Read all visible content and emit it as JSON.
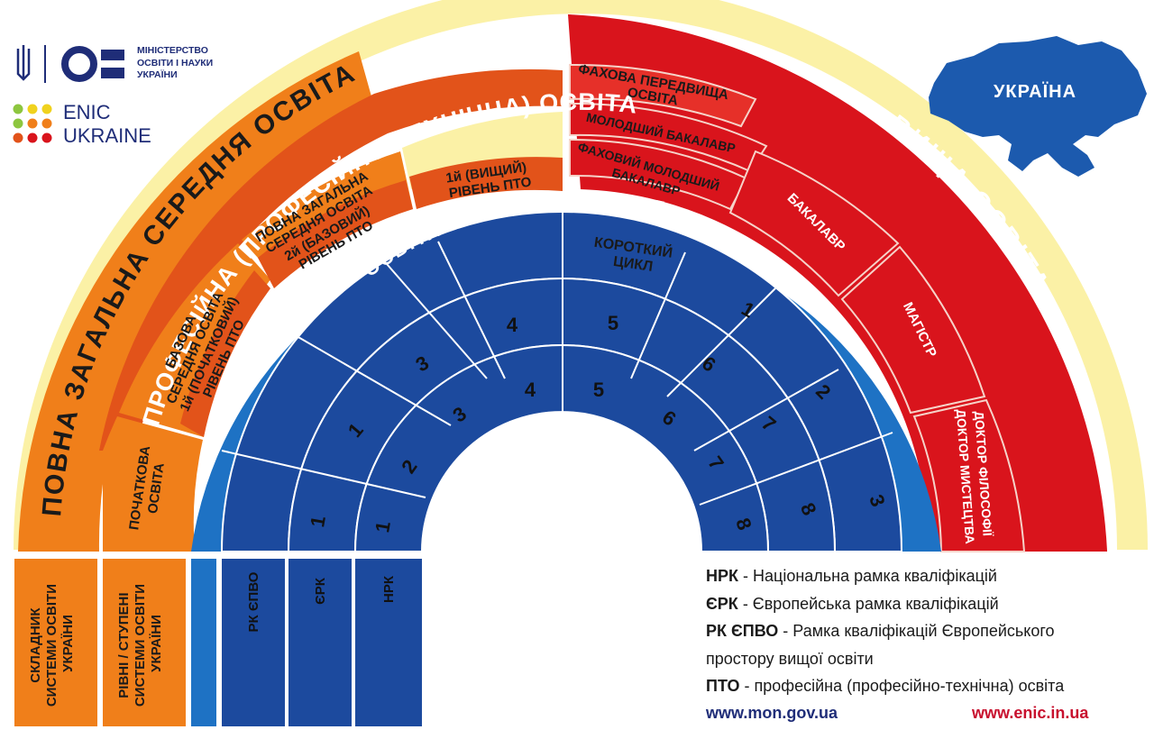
{
  "logo": {
    "ministry_lines": [
      "МІНІСТЕРСТВО",
      "ОСВІТИ І НАУКИ",
      "УКРАЇНИ"
    ],
    "enic_lines": [
      "ENIC",
      "UKRAINE"
    ]
  },
  "map_label": "УКРАЇНА",
  "arcs": {
    "general_secondary": "ПОВНА   ЗАГАЛЬНА   СЕРЕДНЯ   ОСВІТА",
    "vocational": "ПРОФЕСІЙНА (ПРОФЕСІЙНО-ТЕХНІЧНА)  ОСВІТА",
    "higher": "ВИЩА     ОСВІТА",
    "lifelong": "ОСВІТА   ВПРОДОВЖ   ЖИТТЯ"
  },
  "cells": {
    "primary": [
      "ПОЧАТКОВА",
      "ОСВІТА"
    ],
    "basic": [
      "БАЗОВА",
      "СЕРЕДНЯ ОСВІТА",
      "1й (ПОЧАТКОВИЙ)",
      "РІВЕНЬ ПТО"
    ],
    "full_general": [
      "ПОВНА ЗАГАЛЬНА",
      "СЕРЕДНЯ ОСВІТА",
      "2й (БАЗОВИЙ)",
      "РІВЕНЬ ПТО"
    ],
    "higher_vet": [
      "1й (ВИЩИЙ)",
      "РІВЕНЬ ПТО"
    ],
    "prehigher": [
      "ФАХОВА ПЕРЕДВИЩА",
      "ОСВІТА"
    ],
    "junior_bachelor": "МОЛОДШИЙ БАКАЛАВР",
    "prof_junior_bachelor": [
      "ФАХОВИЙ МОЛОДШИЙ",
      "БАКАЛАВР"
    ],
    "bachelor": "БАКАЛАВР",
    "master": "МАГІСТР",
    "doctor": [
      "ДОКТОР ФІЛОСОФІЇ",
      "ДОКТОР МИСТЕЦТВА"
    ],
    "short_cycle": [
      "КОРОТКИЙ",
      "ЦИКЛ"
    ]
  },
  "levels": {
    "ehea": [
      "1",
      "2",
      "3"
    ],
    "eqf": [
      "1",
      "2",
      "3",
      "4",
      "5",
      "6",
      "7",
      "8"
    ],
    "nqf": [
      "1",
      "2",
      "3",
      "4",
      "5",
      "6",
      "7",
      "8"
    ]
  },
  "bottom_boxes": {
    "components": [
      "СКЛАДНИК",
      "СИСТЕМИ ОСВІТИ",
      "УКРАЇНИ"
    ],
    "levels": [
      "РІВНІ / СТУПЕНІ",
      "СИСТЕМИ ОСВІТИ",
      "УКРАЇНИ"
    ],
    "rk_ehea": "РК ЄПВО",
    "eqf": "ЄРК",
    "nqf": "НРК"
  },
  "legend": [
    {
      "abbr": "НРК",
      "text": " - Національна рамка кваліфікацій"
    },
    {
      "abbr": "ЄРК",
      "text": " - Європейська рамка кваліфікацій"
    },
    {
      "abbr": "РК ЄПВО",
      "text": " - Рамка кваліфікацій Європейського"
    },
    {
      "abbr": "",
      "text": "простору вищої освіти"
    },
    {
      "abbr": "ПТО",
      "text": " - професійна (професійно-технічна) освіта"
    }
  ],
  "urls": {
    "left": "www.mon.gov.ua",
    "right": "www.enic.in.ua"
  },
  "colors": {
    "orange": "#f07f1a",
    "dark_orange": "#e2531a",
    "red": "#d9141c",
    "blue": "#1c4a9e",
    "light_blue": "#1e72c4",
    "cream": "#fbf1a6",
    "navy": "#1f2d78"
  }
}
